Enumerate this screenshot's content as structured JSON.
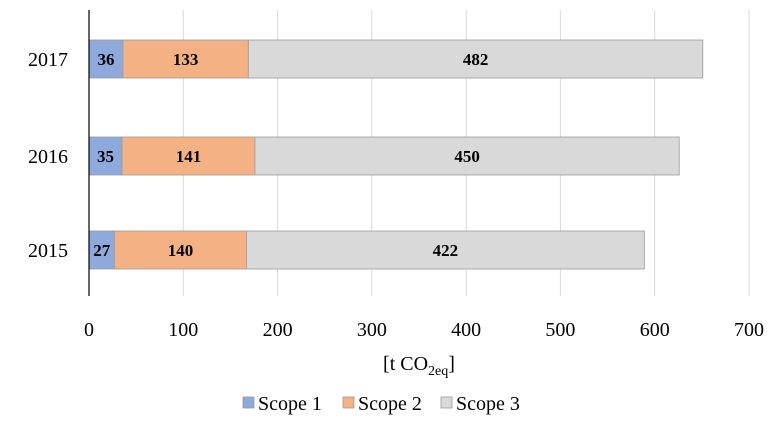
{
  "chart_data": {
    "type": "bar",
    "orientation": "horizontal",
    "stacked": true,
    "categories": [
      "2017",
      "2016",
      "2015"
    ],
    "series": [
      {
        "name": "Scope 1",
        "values": [
          36,
          35,
          27
        ],
        "color": "#8EA9DB"
      },
      {
        "name": "Scope 2",
        "values": [
          133,
          141,
          140
        ],
        "color": "#F4B183"
      },
      {
        "name": "Scope 3",
        "values": [
          482,
          450,
          422
        ],
        "color": "#D9D9D9"
      }
    ],
    "xlabel": {
      "main": "[t CO",
      "sub": "2eq",
      "tail": "]"
    },
    "xlim": [
      0,
      700
    ],
    "xticks": [
      0,
      100,
      200,
      300,
      400,
      500,
      600,
      700
    ],
    "grid": "vertical",
    "legend_position": "bottom"
  }
}
